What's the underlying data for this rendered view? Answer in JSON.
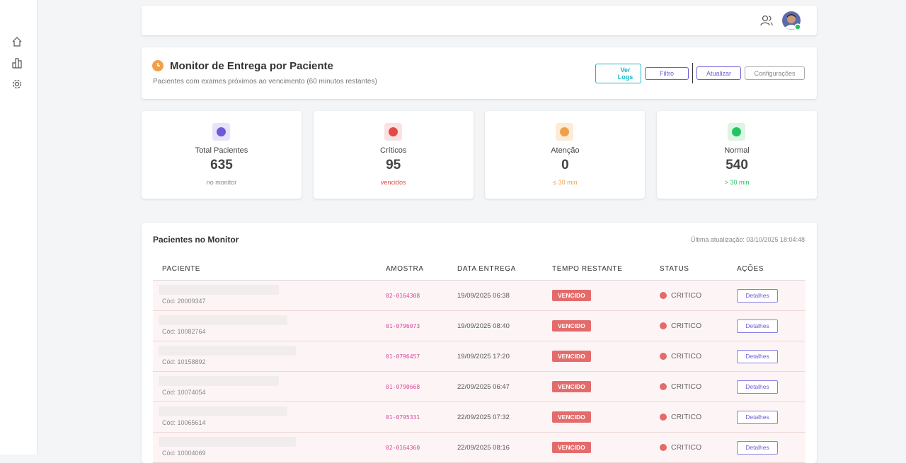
{
  "header": {
    "title": "Monitor de Entrega por Paciente",
    "subtitle": "Pacientes com exames próximos ao vencimento (60 minutos restantes)",
    "buttons": [
      "Ver Logs",
      "Filtro",
      "Atualizar",
      "Configurações"
    ]
  },
  "stats": [
    {
      "label": "Total Pacientes",
      "value": 635,
      "note": "no monitor"
    },
    {
      "label": "Críticos",
      "value": 95,
      "note": "vencidos"
    },
    {
      "label": "Atenção",
      "value": 0,
      "note": "≤ 30 min"
    },
    {
      "label": "Normal",
      "value": 540,
      "note": "> 30 min"
    }
  ],
  "table": {
    "title": "Pacientes no Monitor",
    "updated": "Última atualização: 03/10/2025 18:04:48",
    "columns": [
      "PACIENTE",
      "AMOSTRA",
      "DATA ENTREGA",
      "TEMPO RESTANTE",
      "STATUS",
      "AÇÕES"
    ],
    "rows": [
      {
        "code": "Cód: 20009347",
        "sample": "02-0164308",
        "date": "19/09/2025 06:38",
        "time": "VENCIDO",
        "status": "CRITICO",
        "action": "Detalhes"
      },
      {
        "code": "Cód: 10082764",
        "sample": "01-0796073",
        "date": "19/09/2025 08:40",
        "time": "VENCIDO",
        "status": "CRITICO",
        "action": "Detalhes"
      },
      {
        "code": "Cód: 10158892",
        "sample": "01-0796457",
        "date": "19/09/2025 17:20",
        "time": "VENCIDO",
        "status": "CRITICO",
        "action": "Detalhes"
      },
      {
        "code": "Cód: 10074054",
        "sample": "01-0790668",
        "date": "22/09/2025 06:47",
        "time": "VENCIDO",
        "status": "CRITICO",
        "action": "Detalhes"
      },
      {
        "code": "Cód: 10065614",
        "sample": "01-0795331",
        "date": "22/09/2025 07:32",
        "time": "VENCIDO",
        "status": "CRITICO",
        "action": "Detalhes"
      },
      {
        "code": "Cód: 10004069",
        "sample": "02-0164360",
        "date": "22/09/2025 08:16",
        "time": "VENCIDO",
        "status": "CRITICO",
        "action": "Detalhes"
      }
    ]
  }
}
